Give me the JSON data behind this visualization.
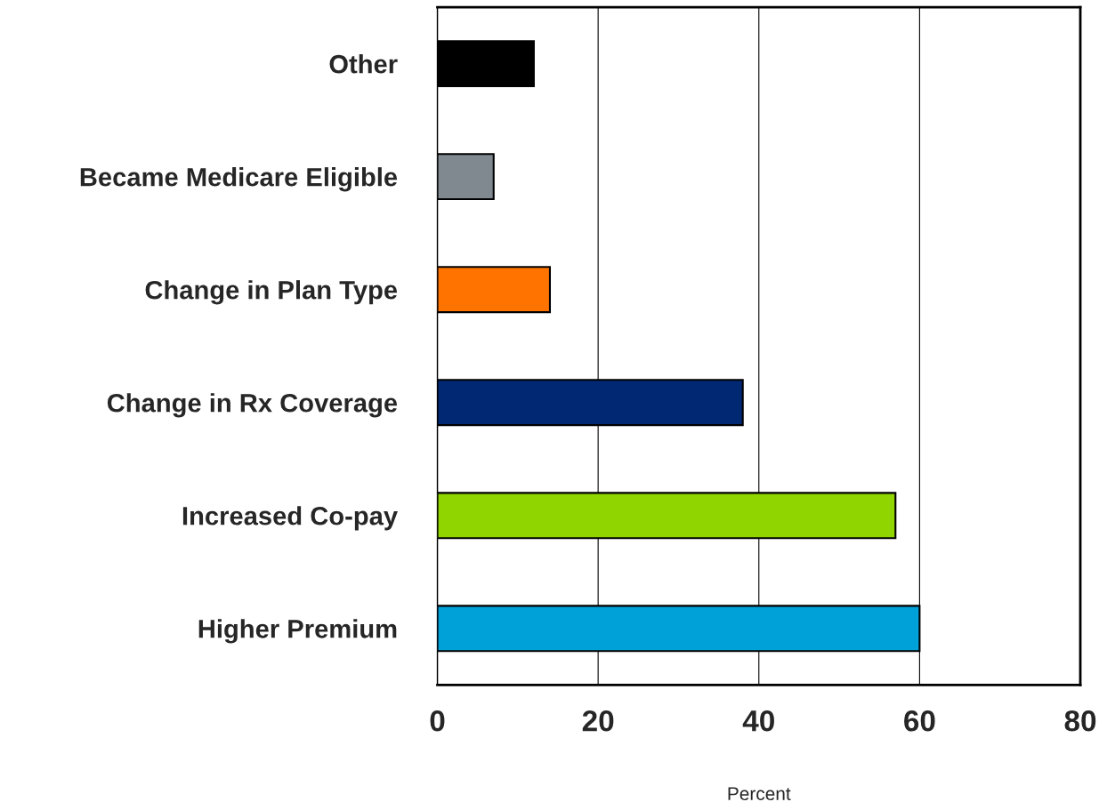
{
  "chart_data": {
    "type": "bar",
    "orientation": "horizontal",
    "categories": [
      "Other",
      "Became Medicare Eligible",
      "Change in Plan Type",
      "Change in Rx Coverage",
      "Increased Co-pay",
      "Higher Premium"
    ],
    "values": [
      12,
      7,
      14,
      38,
      57,
      60
    ],
    "colors": [
      "#000000",
      "#808890",
      "#ff7300",
      "#002873",
      "#90d400",
      "#00a0d8"
    ],
    "xlabel": "Percent",
    "xlim": [
      0,
      80
    ],
    "xticks": [
      0,
      20,
      40,
      60,
      80
    ],
    "grid": "x",
    "legend": false
  }
}
